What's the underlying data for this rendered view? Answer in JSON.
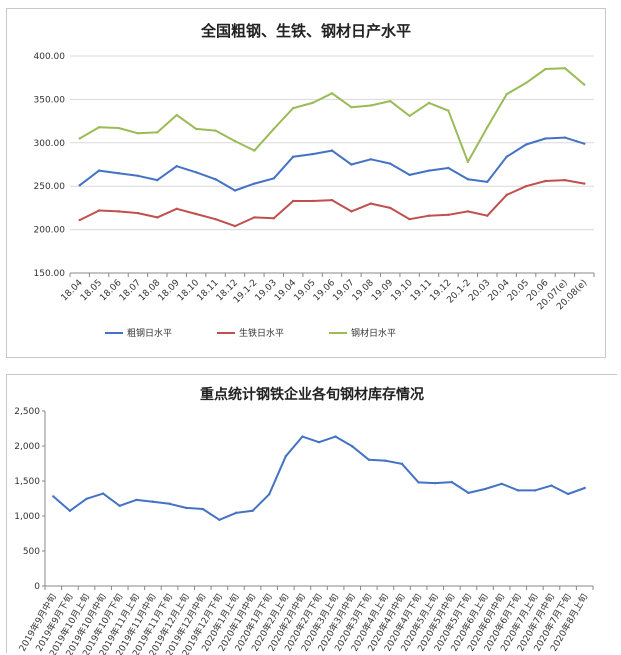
{
  "chart_data": [
    {
      "type": "line",
      "title": "全国粗钢、生铁、钢材日产水平",
      "ylim": [
        150,
        400
      ],
      "yticks": [
        "150.00",
        "200.00",
        "250.00",
        "300.00",
        "350.00",
        "400.00"
      ],
      "ytick_values": [
        150,
        200,
        250,
        300,
        350,
        400
      ],
      "categories": [
        "18.04",
        "18.05",
        "18.06",
        "18.07",
        "18.08",
        "18.09",
        "18.10",
        "18.11",
        "18.12",
        "19.1-2",
        "19.03",
        "19.04",
        "19.05",
        "19.06",
        "19.07",
        "19.08",
        "19.09",
        "19.10",
        "19.11",
        "19.12",
        "20.1-2",
        "20.03",
        "20.04",
        "20.05",
        "20.06",
        "20.07(e)",
        "20.08(e)"
      ],
      "grid": true,
      "legend_position": "bottom",
      "series": [
        {
          "name": "粗钢日水平",
          "color": "#4472c4",
          "values": [
            251,
            268,
            265,
            262,
            257,
            273,
            266,
            258,
            245,
            253,
            259,
            284,
            287,
            291,
            275,
            281,
            276,
            263,
            268,
            271,
            258,
            255,
            284,
            298,
            305,
            306,
            299
          ]
        },
        {
          "name": "生铁日水平",
          "color": "#c0504d",
          "values": [
            211,
            222,
            221,
            219,
            214,
            224,
            218,
            212,
            204,
            214,
            213,
            233,
            233,
            234,
            221,
            230,
            225,
            212,
            216,
            217,
            221,
            216,
            240,
            250,
            256,
            257,
            253
          ]
        },
        {
          "name": "钢材日水平",
          "color": "#9bbb59",
          "values": [
            305,
            318,
            317,
            311,
            312,
            332,
            316,
            314,
            302,
            291,
            316,
            340,
            346,
            357,
            341,
            343,
            348,
            331,
            346,
            337,
            278,
            318,
            356,
            369,
            385,
            386,
            367
          ]
        }
      ]
    },
    {
      "type": "line",
      "title": "重点统计钢铁企业各旬钢材库存情况",
      "ylim": [
        0,
        2500
      ],
      "yticks": [
        "0",
        "500",
        "1,000",
        "1,500",
        "2,000",
        "2,500"
      ],
      "ytick_values": [
        0,
        500,
        1000,
        1500,
        2000,
        2500
      ],
      "grid": false,
      "categories": [
        "2019年9月中旬",
        "2019年9月下旬",
        "2019年10月上旬",
        "2019年10月中旬",
        "2019年10月下旬",
        "2019年11月上旬",
        "2019年11月中旬",
        "2019年11月下旬",
        "2019年12月上旬",
        "2019年12月中旬",
        "2019年12月下旬",
        "2020年1月上旬",
        "2020年1月中旬",
        "2020年1月下旬",
        "2020年2月上旬",
        "2020年2月中旬",
        "2020年2月下旬",
        "2020年3月上旬",
        "2020年3月中旬",
        "2020年3月下旬",
        "2020年4月上旬",
        "2020年4月中旬",
        "2020年4月下旬",
        "2020年5月上旬",
        "2020年5月中旬",
        "2020年5月下旬",
        "2020年6月上旬",
        "2020年6月中旬",
        "2020年6月下旬",
        "2020年7月上旬",
        "2020年7月中旬",
        "2020年7月下旬",
        "2020年8月上旬"
      ],
      "series": [
        {
          "color": "#4472c4",
          "values": [
            1280,
            1075,
            1245,
            1320,
            1145,
            1230,
            1205,
            1175,
            1115,
            1100,
            945,
            1045,
            1075,
            1310,
            1855,
            2135,
            2055,
            2135,
            1995,
            1805,
            1790,
            1745,
            1480,
            1470,
            1485,
            1330,
            1385,
            1460,
            1365,
            1365,
            1435,
            1315,
            1400
          ]
        }
      ]
    }
  ]
}
